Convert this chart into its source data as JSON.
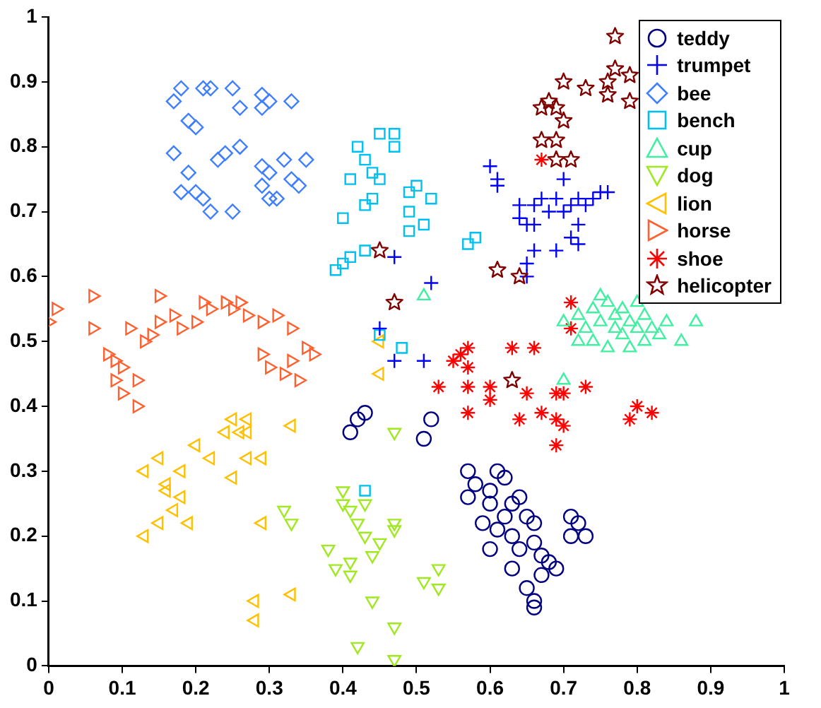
{
  "chart_data": {
    "type": "scatter",
    "xlim": [
      0,
      1
    ],
    "ylim": [
      0,
      1
    ],
    "xticks": [
      0,
      0.1,
      0.2,
      0.3,
      0.4,
      0.5,
      0.6,
      0.7,
      0.8,
      0.9,
      1
    ],
    "yticks": [
      0,
      0.1,
      0.2,
      0.3,
      0.4,
      0.5,
      0.6,
      0.7,
      0.8,
      0.9,
      1
    ],
    "grid": false,
    "legend": "top right",
    "series": [
      {
        "name": "teddy",
        "color": "#000080",
        "marker": "circle",
        "x": [
          0.41,
          0.42,
          0.43,
          0.51,
          0.52,
          0.57,
          0.58,
          0.57,
          0.61,
          0.62,
          0.6,
          0.6,
          0.59,
          0.61,
          0.62,
          0.63,
          0.64,
          0.65,
          0.66,
          0.63,
          0.64,
          0.66,
          0.67,
          0.68,
          0.67,
          0.69,
          0.65,
          0.66,
          0.66,
          0.6,
          0.71,
          0.72,
          0.73,
          0.71,
          0.63
        ],
        "values": [
          0.36,
          0.38,
          0.39,
          0.35,
          0.38,
          0.3,
          0.28,
          0.26,
          0.3,
          0.29,
          0.27,
          0.25,
          0.22,
          0.21,
          0.23,
          0.25,
          0.26,
          0.23,
          0.22,
          0.2,
          0.18,
          0.19,
          0.17,
          0.16,
          0.14,
          0.15,
          0.12,
          0.1,
          0.09,
          0.18,
          0.23,
          0.22,
          0.2,
          0.2,
          0.15
        ]
      },
      {
        "name": "trumpet",
        "color": "#0000ff",
        "marker": "cross",
        "x": [
          0.47,
          0.45,
          0.47,
          0.51,
          0.52,
          0.6,
          0.61,
          0.61,
          0.64,
          0.64,
          0.65,
          0.66,
          0.67,
          0.68,
          0.69,
          0.7,
          0.71,
          0.72,
          0.73,
          0.74,
          0.75,
          0.76,
          0.7,
          0.71,
          0.72,
          0.69,
          0.66,
          0.65,
          0.65,
          0.66,
          0.72
        ],
        "values": [
          0.63,
          0.52,
          0.47,
          0.47,
          0.59,
          0.77,
          0.75,
          0.74,
          0.71,
          0.69,
          0.68,
          0.71,
          0.72,
          0.7,
          0.72,
          0.7,
          0.71,
          0.72,
          0.71,
          0.72,
          0.73,
          0.73,
          0.75,
          0.66,
          0.65,
          0.64,
          0.64,
          0.62,
          0.6,
          0.68,
          0.68
        ]
      },
      {
        "name": "bee",
        "color": "#3f7fff",
        "marker": "diamond",
        "x": [
          0.17,
          0.18,
          0.21,
          0.22,
          0.19,
          0.2,
          0.17,
          0.19,
          0.18,
          0.2,
          0.21,
          0.22,
          0.23,
          0.24,
          0.26,
          0.25,
          0.25,
          0.26,
          0.29,
          0.3,
          0.29,
          0.33,
          0.29,
          0.3,
          0.29,
          0.3,
          0.31,
          0.32,
          0.33,
          0.35,
          0.34
        ],
        "values": [
          0.87,
          0.89,
          0.89,
          0.89,
          0.84,
          0.83,
          0.79,
          0.76,
          0.73,
          0.73,
          0.72,
          0.7,
          0.78,
          0.79,
          0.8,
          0.7,
          0.89,
          0.86,
          0.88,
          0.87,
          0.86,
          0.87,
          0.77,
          0.76,
          0.74,
          0.72,
          0.72,
          0.78,
          0.75,
          0.78,
          0.74
        ]
      },
      {
        "name": "bench",
        "color": "#00c0f0",
        "marker": "square",
        "x": [
          0.39,
          0.4,
          0.41,
          0.43,
          0.4,
          0.41,
          0.42,
          0.43,
          0.44,
          0.45,
          0.43,
          0.44,
          0.45,
          0.47,
          0.47,
          0.49,
          0.5,
          0.52,
          0.49,
          0.49,
          0.51,
          0.57,
          0.58,
          0.45,
          0.48,
          0.43
        ],
        "values": [
          0.61,
          0.62,
          0.63,
          0.64,
          0.69,
          0.75,
          0.8,
          0.78,
          0.76,
          0.75,
          0.71,
          0.72,
          0.82,
          0.82,
          0.8,
          0.73,
          0.74,
          0.72,
          0.7,
          0.67,
          0.68,
          0.65,
          0.66,
          0.51,
          0.49,
          0.27
        ]
      },
      {
        "name": "cup",
        "color": "#40f0a0",
        "marker": "triangle",
        "x": [
          0.7,
          0.72,
          0.73,
          0.74,
          0.75,
          0.76,
          0.77,
          0.78,
          0.79,
          0.8,
          0.81,
          0.82,
          0.83,
          0.84,
          0.86,
          0.88,
          0.74,
          0.76,
          0.78,
          0.79,
          0.81,
          0.77,
          0.75,
          0.72,
          0.8,
          0.7,
          0.51
        ],
        "values": [
          0.53,
          0.54,
          0.52,
          0.55,
          0.57,
          0.56,
          0.54,
          0.55,
          0.53,
          0.52,
          0.54,
          0.52,
          0.51,
          0.53,
          0.5,
          0.53,
          0.5,
          0.49,
          0.51,
          0.49,
          0.5,
          0.52,
          0.53,
          0.5,
          0.56,
          0.44,
          0.57
        ]
      },
      {
        "name": "dog",
        "color": "#a0e820",
        "marker": "triangle",
        "x": [
          0.4,
          0.4,
          0.41,
          0.43,
          0.42,
          0.43,
          0.45,
          0.44,
          0.47,
          0.47,
          0.38,
          0.39,
          0.41,
          0.41,
          0.32,
          0.33,
          0.47,
          0.44,
          0.47,
          0.42,
          0.47,
          0.51,
          0.53,
          0.53
        ],
        "values": [
          0.27,
          0.25,
          0.24,
          0.25,
          0.22,
          0.2,
          0.19,
          0.17,
          0.21,
          0.22,
          0.18,
          0.15,
          0.16,
          0.14,
          0.24,
          0.22,
          0.36,
          0.1,
          0.06,
          0.03,
          0.01,
          0.13,
          0.15,
          0.12
        ]
      },
      {
        "name": "lion",
        "color": "#ffc000",
        "marker": "triangle",
        "x": [
          0.13,
          0.13,
          0.15,
          0.16,
          0.16,
          0.18,
          0.18,
          0.17,
          0.19,
          0.15,
          0.2,
          0.22,
          0.24,
          0.25,
          0.26,
          0.27,
          0.27,
          0.25,
          0.27,
          0.29,
          0.29,
          0.33,
          0.28,
          0.28,
          0.33,
          0.45,
          0.45
        ],
        "values": [
          0.2,
          0.3,
          0.32,
          0.28,
          0.27,
          0.3,
          0.26,
          0.24,
          0.22,
          0.22,
          0.34,
          0.32,
          0.36,
          0.38,
          0.36,
          0.38,
          0.36,
          0.29,
          0.32,
          0.32,
          0.22,
          0.37,
          0.1,
          0.07,
          0.11,
          0.5,
          0.45
        ]
      },
      {
        "name": "horse",
        "color": "#ff6030",
        "marker": "triangle",
        "x": [
          0,
          0.01,
          0.06,
          0.06,
          0.09,
          0.09,
          0.1,
          0.1,
          0.12,
          0.12,
          0.13,
          0.14,
          0.15,
          0.15,
          0.17,
          0.18,
          0.2,
          0.21,
          0.22,
          0.24,
          0.25,
          0.26,
          0.27,
          0.29,
          0.31,
          0.33,
          0.29,
          0.3,
          0.32,
          0.33,
          0.34,
          0.35,
          0.36,
          0.11,
          0.08
        ],
        "values": [
          0.53,
          0.55,
          0.57,
          0.52,
          0.47,
          0.44,
          0.42,
          0.46,
          0.44,
          0.4,
          0.5,
          0.51,
          0.53,
          0.57,
          0.54,
          0.52,
          0.53,
          0.56,
          0.55,
          0.56,
          0.55,
          0.56,
          0.54,
          0.53,
          0.54,
          0.52,
          0.48,
          0.46,
          0.45,
          0.47,
          0.44,
          0.49,
          0.48,
          0.52,
          0.48
        ]
      },
      {
        "name": "shoe",
        "color": "#ff0000",
        "marker": "cross",
        "x": [
          0.55,
          0.56,
          0.57,
          0.57,
          0.63,
          0.66,
          0.71,
          0.53,
          0.57,
          0.6,
          0.6,
          0.57,
          0.65,
          0.64,
          0.67,
          0.69,
          0.7,
          0.73,
          0.69,
          0.7,
          0.69,
          0.79,
          0.8,
          0.82,
          0.67,
          0.71
        ],
        "values": [
          0.47,
          0.48,
          0.49,
          0.46,
          0.49,
          0.49,
          0.52,
          0.43,
          0.43,
          0.43,
          0.41,
          0.39,
          0.42,
          0.38,
          0.39,
          0.42,
          0.42,
          0.43,
          0.38,
          0.37,
          0.34,
          0.38,
          0.4,
          0.39,
          0.78,
          0.56
        ]
      },
      {
        "name": "helicopter",
        "color": "#800000",
        "marker": "star",
        "x": [
          0.77,
          0.77,
          0.79,
          0.76,
          0.7,
          0.73,
          0.68,
          0.69,
          0.7,
          0.67,
          0.67,
          0.69,
          0.69,
          0.71,
          0.76,
          0.79,
          0.45,
          0.47,
          0.61,
          0.64,
          0.63
        ],
        "values": [
          0.97,
          0.92,
          0.91,
          0.9,
          0.9,
          0.89,
          0.87,
          0.86,
          0.84,
          0.86,
          0.81,
          0.81,
          0.78,
          0.78,
          0.88,
          0.87,
          0.64,
          0.56,
          0.61,
          0.6,
          0.44
        ]
      }
    ]
  }
}
